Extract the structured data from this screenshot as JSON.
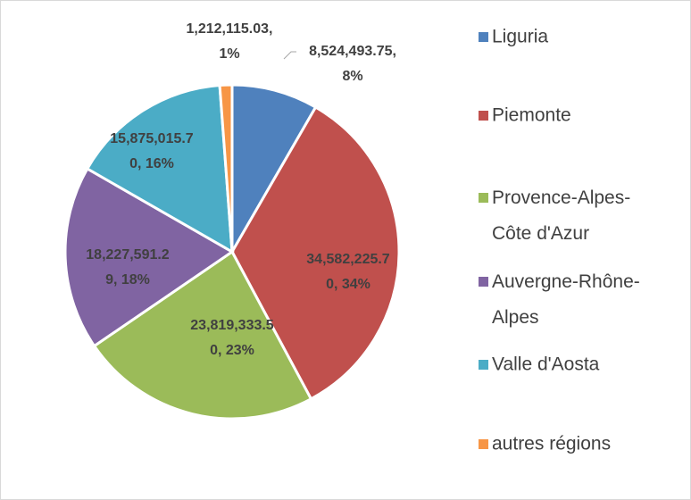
{
  "chart_data": {
    "type": "pie",
    "categories": [
      "Liguria",
      "Piemonte",
      "Provence-Alpes-Côte d'Azur",
      "Auvergne-Rhône-Alpes",
      "Valle d'Aosta",
      "autres régions"
    ],
    "values": [
      8524493.75,
      34582225.7,
      23819333.5,
      18227591.29,
      15875015.7,
      1212115.03
    ],
    "value_labels": [
      [
        "8,524,493.75,",
        "8%"
      ],
      [
        "34,582,225.7",
        "0, 34%"
      ],
      [
        "23,819,333.5",
        "0, 23%"
      ],
      [
        "18,227,591.2",
        "9, 18%"
      ],
      [
        "15,875,015.7",
        "0, 16%"
      ],
      [
        "1,212,115.03,",
        "1%"
      ]
    ],
    "colors": [
      "#4f81bd",
      "#c0504d",
      "#9bbb59",
      "#8064a2",
      "#4bacc6",
      "#f79646"
    ],
    "legend": "right"
  }
}
